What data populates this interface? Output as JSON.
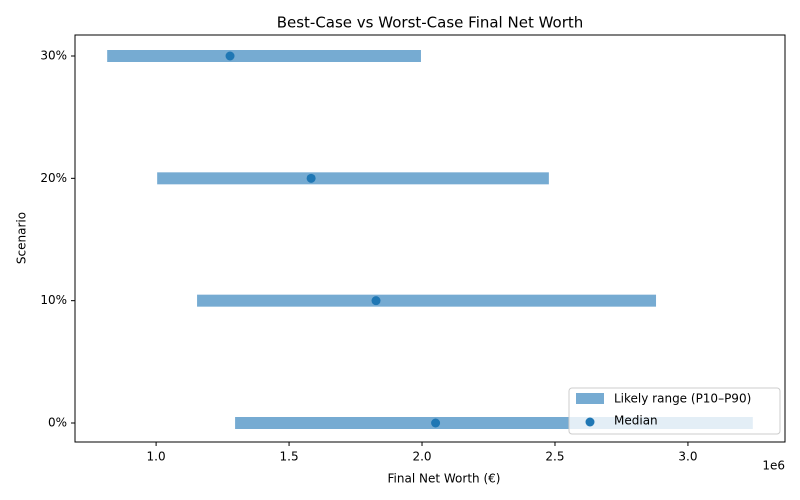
{
  "chart_data": {
    "type": "range",
    "title": "Best-Case vs Worst-Case Final Net Worth",
    "x_label": "Final Net Worth (€)",
    "y_label": "Scenario",
    "x_offset_label": "1e6",
    "categories": [
      "0%",
      "10%",
      "20%",
      "30%"
    ],
    "series": [
      {
        "name": "Likely range (P10–P90)",
        "color": "#76abd2",
        "low": [
          1297000,
          1154000,
          1004000,
          816000
        ],
        "high": [
          3244000,
          2880000,
          2477000,
          1996000
        ]
      },
      {
        "name": "Median",
        "color": "#1f77b4",
        "values": [
          2051000,
          1827000,
          1583000,
          1278000
        ]
      }
    ],
    "xlim": [
      695000,
      3365000
    ],
    "xticks": [
      {
        "value": 1000000,
        "label": "1.0"
      },
      {
        "value": 1500000,
        "label": "1.5"
      },
      {
        "value": 2000000,
        "label": "2.0"
      },
      {
        "value": 2500000,
        "label": "2.5"
      },
      {
        "value": 3000000,
        "label": "3.0"
      }
    ],
    "legend_position": "lower right"
  }
}
